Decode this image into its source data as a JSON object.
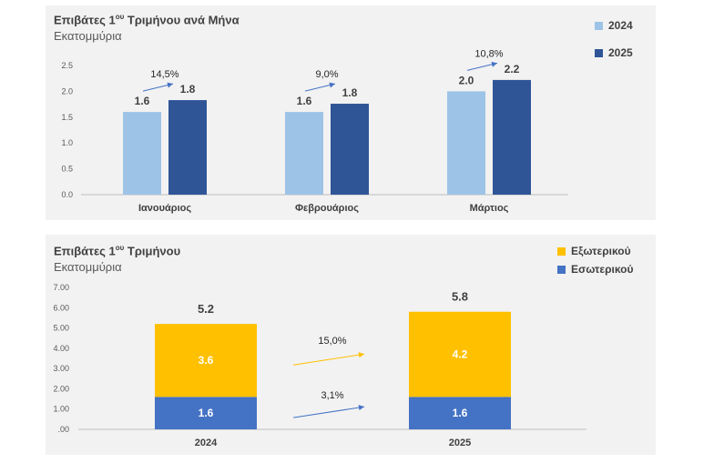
{
  "chart_data": [
    {
      "type": "bar",
      "title_main": "Επιβάτες 1",
      "title_sup": "ου",
      "title_rest": " Τριμήνου ανά Μήνα",
      "subtitle": "Εκατομμύρια",
      "categories": [
        "Ιανουάριος",
        "Φεβρουάριος",
        "Μάρτιος"
      ],
      "series": [
        {
          "name": "2024",
          "values": [
            1.6,
            1.6,
            2.0
          ],
          "labels": [
            "1.6",
            "1.6",
            "2.0"
          ],
          "color": "#9dc3e6"
        },
        {
          "name": "2025",
          "values": [
            1.83,
            1.76,
            2.22
          ],
          "labels": [
            "1.8",
            "1.8",
            "2.2"
          ],
          "color": "#2f5597"
        }
      ],
      "growth_labels": [
        "14,5%",
        "9,0%",
        "10,8%"
      ],
      "yticks": [
        "0.0",
        "0.5",
        "1.0",
        "1.5",
        "2.0",
        "2.5"
      ],
      "ylim": [
        0,
        2.5
      ],
      "legend_position": "top-right",
      "arrow_color": "#4472c4"
    },
    {
      "type": "bar",
      "stacked": true,
      "title_main": "Επιβάτες 1",
      "title_sup": "ου",
      "title_rest": " Τριμήνου",
      "subtitle": "Εκατομμύρια",
      "categories": [
        "2024",
        "2025"
      ],
      "series": [
        {
          "name": "Εσωτερικού",
          "values": [
            1.6,
            1.6
          ],
          "labels": [
            "1.6",
            "1.6"
          ],
          "color": "#4472c4"
        },
        {
          "name": "Εξωτερικού",
          "values": [
            3.6,
            4.2
          ],
          "labels": [
            "3.6",
            "4.2"
          ],
          "color": "#ffc000"
        }
      ],
      "legend_order": [
        "Εξωτερικού",
        "Εσωτερικού"
      ],
      "totals": [
        "5.2",
        "5.8"
      ],
      "growth_labels": [
        {
          "text": "15,0%",
          "color": "#ffc000"
        },
        {
          "text": "3,1%",
          "color": "#4472c4"
        }
      ],
      "yticks": [
        ".00",
        "1.00",
        "2.00",
        "3.00",
        "4.00",
        "5.00",
        "6.00",
        "7.00"
      ],
      "ylim": [
        0,
        7
      ],
      "legend_position": "top-right"
    }
  ]
}
